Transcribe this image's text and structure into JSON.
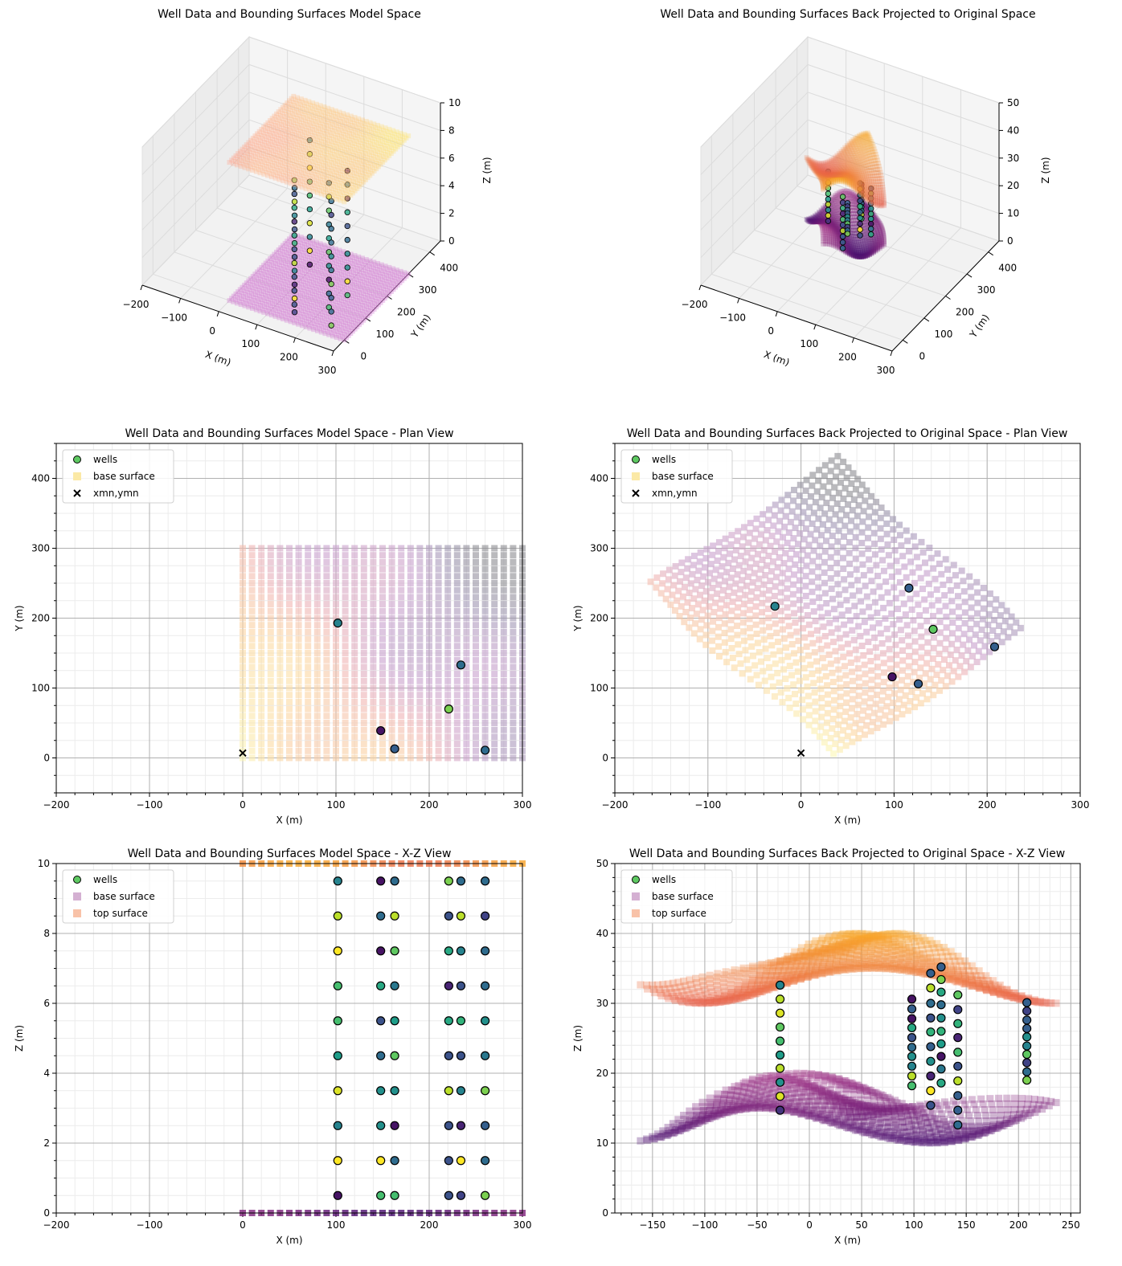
{
  "colors": {
    "wells_legend": "#5ec962",
    "base_legend_plan": "#fbe9a6",
    "base_legend_xz": "#d4b0d2",
    "top_legend_xz": "#f8c2a8",
    "marker_edge": "#000000",
    "xmn_marker": "#000000"
  },
  "surfaces": {
    "model_grid_x": [
      0,
      300
    ],
    "model_grid_y": [
      0,
      300
    ],
    "model_spacing": 10,
    "model_base_z": 0,
    "model_top_z": 10,
    "original_top_z_range": [
      30,
      40
    ],
    "original_base_z_range": [
      10,
      20
    ]
  },
  "chart_data": [
    {
      "type": "scatter",
      "view": "3d",
      "title": "Well Data and Bounding Surfaces Model Space",
      "xlabel": "X (m)",
      "ylabel": "Y (m)",
      "zlabel": "Z (m)",
      "xlim": [
        -200,
        300
      ],
      "ylim": [
        -50,
        450
      ],
      "zlim": [
        0,
        10
      ],
      "xticks": [
        "−200",
        "−100",
        "0",
        "100",
        "200",
        "300"
      ],
      "xtick_values": [
        -200,
        -100,
        0,
        100,
        200,
        300
      ],
      "yticks": [
        "0",
        "100",
        "200",
        "300",
        "400"
      ],
      "ytick_values": [
        0,
        100,
        200,
        300,
        400
      ],
      "zticks": [
        "0",
        "2",
        "4",
        "6",
        "8",
        "10"
      ],
      "ztick_values": [
        0,
        2,
        4,
        6,
        8,
        10
      ]
    },
    {
      "type": "scatter",
      "view": "3d",
      "title": "Well Data and Bounding Surfaces Back Projected to Original Space",
      "xlabel": "X (m)",
      "ylabel": "Y (m)",
      "zlabel": "Z (m)",
      "xlim": [
        -200,
        300
      ],
      "ylim": [
        -50,
        450
      ],
      "zlim": [
        0,
        50
      ],
      "xticks": [
        "−200",
        "−100",
        "0",
        "100",
        "200",
        "300"
      ],
      "xtick_values": [
        -200,
        -100,
        0,
        100,
        200,
        300
      ],
      "yticks": [
        "0",
        "100",
        "200",
        "300",
        "400"
      ],
      "ytick_values": [
        0,
        100,
        200,
        300,
        400
      ],
      "zticks": [
        "0",
        "10",
        "20",
        "30",
        "40",
        "50"
      ],
      "ztick_values": [
        0,
        10,
        20,
        30,
        40,
        50
      ]
    },
    {
      "type": "scatter",
      "view": "plan",
      "title": "Well Data and Bounding Surfaces Model Space - Plan View",
      "xlabel": "X (m)",
      "ylabel": "Y (m)",
      "xlim": [
        -200,
        300
      ],
      "ylim": [
        -50,
        450
      ],
      "grid": true,
      "legend_position": "upper-left",
      "xticks": [
        "−200",
        "−100",
        "0",
        "100",
        "200",
        "300"
      ],
      "xtick_values": [
        -200,
        -100,
        0,
        100,
        200,
        300
      ],
      "yticks": [
        "0",
        "100",
        "200",
        "300",
        "400"
      ],
      "ytick_values": [
        0,
        100,
        200,
        300,
        400
      ],
      "legend": [
        "wells",
        "base surface",
        "xmn,ymn"
      ],
      "wells": [
        {
          "x": 102,
          "y": 193,
          "v": 0.45
        },
        {
          "x": 234,
          "y": 133,
          "v": 0.35
        },
        {
          "x": 221,
          "y": 70,
          "v": 0.8
        },
        {
          "x": 148,
          "y": 39,
          "v": 0.05
        },
        {
          "x": 163,
          "y": 13,
          "v": 0.3
        },
        {
          "x": 260,
          "y": 11,
          "v": 0.35
        }
      ],
      "xmn_ymn": {
        "x": 0,
        "y": 7
      }
    },
    {
      "type": "scatter",
      "view": "plan",
      "title": "Well Data and Bounding Surfaces Back Projected to Original Space - Plan View",
      "xlabel": "X (m)",
      "ylabel": "Y (m)",
      "xlim": [
        -200,
        300
      ],
      "ylim": [
        -50,
        450
      ],
      "grid": true,
      "legend_position": "upper-left",
      "xticks": [
        "−200",
        "−100",
        "0",
        "100",
        "200",
        "300"
      ],
      "xtick_values": [
        -200,
        -100,
        0,
        100,
        200,
        300
      ],
      "yticks": [
        "0",
        "100",
        "200",
        "300",
        "400"
      ],
      "ytick_values": [
        0,
        100,
        200,
        300,
        400
      ],
      "legend": [
        "wells",
        "base surface",
        "xmn,ymn"
      ],
      "wells": [
        {
          "x": -28,
          "y": 217,
          "v": 0.45
        },
        {
          "x": 116,
          "y": 243,
          "v": 0.3
        },
        {
          "x": 142,
          "y": 184,
          "v": 0.75
        },
        {
          "x": 208,
          "y": 159,
          "v": 0.3
        },
        {
          "x": 98,
          "y": 116,
          "v": 0.05
        },
        {
          "x": 126,
          "y": 106,
          "v": 0.3
        }
      ],
      "xmn_ymn": {
        "x": 0,
        "y": 7
      }
    },
    {
      "type": "scatter",
      "view": "xz",
      "title": "Well Data and Bounding Surfaces Model Space - X-Z View",
      "xlabel": "X (m)",
      "ylabel": "Z (m)",
      "xlim": [
        -200,
        300
      ],
      "ylim": [
        0,
        10
      ],
      "grid": true,
      "legend_position": "upper-left",
      "xticks": [
        "−200",
        "−100",
        "0",
        "100",
        "200",
        "300"
      ],
      "xtick_values": [
        -200,
        -100,
        0,
        100,
        200,
        300
      ],
      "yticks": [
        "0",
        "2",
        "4",
        "6",
        "8",
        "10"
      ],
      "ytick_values": [
        0,
        2,
        4,
        6,
        8,
        10
      ],
      "legend": [
        "wells",
        "base surface",
        "top surface"
      ],
      "wells": [
        {
          "x": 102,
          "z": [
            9.5,
            8.5,
            7.5,
            6.5,
            5.5,
            4.5,
            3.5,
            2.5,
            1.5,
            0.5
          ],
          "v": [
            0.45,
            0.9,
            1.0,
            0.7,
            0.7,
            0.55,
            0.95,
            0.45,
            1.0,
            0.05
          ]
        },
        {
          "x": 148,
          "z": [
            9.5,
            8.5,
            7.5,
            6.5,
            5.5,
            4.5,
            3.5,
            2.5,
            1.5,
            0.5
          ],
          "v": [
            0.05,
            0.35,
            0.05,
            0.6,
            0.25,
            0.35,
            0.5,
            0.5,
            1.0,
            0.7
          ]
        },
        {
          "x": 163,
          "z": [
            9.5,
            8.5,
            7.5,
            6.5,
            5.5,
            4.5,
            3.5,
            2.5,
            1.5,
            0.5
          ],
          "v": [
            0.35,
            0.9,
            0.75,
            0.4,
            0.55,
            0.75,
            0.5,
            0.05,
            0.35,
            0.7
          ]
        },
        {
          "x": 221,
          "z": [
            9.5,
            8.5,
            7.5,
            6.5,
            5.5,
            4.5,
            3.5,
            2.5,
            1.5,
            0.5
          ],
          "v": [
            0.8,
            0.25,
            0.6,
            0.1,
            0.6,
            0.25,
            0.9,
            0.25,
            0.25,
            0.25
          ]
        },
        {
          "x": 234,
          "z": [
            9.5,
            8.5,
            7.5,
            6.5,
            5.5,
            4.5,
            3.5,
            2.5,
            1.5,
            0.5
          ],
          "v": [
            0.35,
            0.9,
            0.45,
            0.25,
            0.65,
            0.25,
            0.45,
            0.1,
            1.0,
            0.2
          ]
        },
        {
          "x": 260,
          "z": [
            9.5,
            8.5,
            7.5,
            6.5,
            5.5,
            4.5,
            3.5,
            2.5,
            1.5,
            0.5
          ],
          "v": [
            0.35,
            0.2,
            0.35,
            0.35,
            0.5,
            0.4,
            0.8,
            0.3,
            0.35,
            0.8
          ]
        }
      ]
    },
    {
      "type": "scatter",
      "view": "xz",
      "title": "Well Data and Bounding Surfaces Back Projected to Original Space  - X-Z View",
      "xlabel": "X (m)",
      "ylabel": "Z (m)",
      "xlim": [
        -186,
        259
      ],
      "ylim": [
        0,
        50
      ],
      "grid": true,
      "legend_position": "upper-left",
      "xticks": [
        "−150",
        "−100",
        "−50",
        "0",
        "50",
        "100",
        "150",
        "200",
        "250"
      ],
      "xtick_values": [
        -150,
        -100,
        -50,
        0,
        50,
        100,
        150,
        200,
        250
      ],
      "yticks": [
        "0",
        "10",
        "20",
        "30",
        "40",
        "50"
      ],
      "ytick_values": [
        0,
        10,
        20,
        30,
        40,
        50
      ],
      "legend": [
        "wells",
        "base surface",
        "top surface"
      ],
      "wells": [
        {
          "x": -28,
          "z": [
            32.6,
            30.6,
            28.6,
            26.6,
            24.6,
            22.6,
            20.7,
            18.7,
            16.7,
            14.7
          ],
          "v": [
            0.45,
            0.9,
            0.95,
            0.75,
            0.7,
            0.55,
            0.9,
            0.5,
            0.95,
            0.15
          ]
        },
        {
          "x": 98,
          "z": [
            30.6,
            29.2,
            27.8,
            26.5,
            25.1,
            23.7,
            22.4,
            21.0,
            19.6,
            18.2
          ],
          "v": [
            0.05,
            0.3,
            0.05,
            0.6,
            0.25,
            0.35,
            0.5,
            0.45,
            0.9,
            0.7
          ]
        },
        {
          "x": 116,
          "z": [
            34.3,
            32.2,
            30.0,
            27.9,
            25.9,
            23.8,
            21.7,
            19.6,
            17.5,
            15.4
          ],
          "v": [
            0.3,
            0.9,
            0.35,
            0.25,
            0.65,
            0.3,
            0.5,
            0.1,
            1.0,
            0.25
          ]
        },
        {
          "x": 126,
          "z": [
            35.2,
            33.4,
            31.6,
            29.8,
            27.9,
            26.0,
            24.2,
            22.4,
            20.6,
            18.6
          ],
          "v": [
            0.3,
            0.8,
            0.6,
            0.35,
            0.5,
            0.65,
            0.55,
            0.05,
            0.4,
            0.6
          ]
        },
        {
          "x": 142,
          "z": [
            31.2,
            29.1,
            27.1,
            25.1,
            23.0,
            21.0,
            18.9,
            16.8,
            14.7,
            12.6
          ],
          "v": [
            0.75,
            0.2,
            0.65,
            0.1,
            0.7,
            0.25,
            0.9,
            0.3,
            0.3,
            0.35
          ]
        },
        {
          "x": 208,
          "z": [
            30.1,
            28.9,
            27.6,
            26.4,
            25.2,
            23.9,
            22.7,
            21.5,
            20.2,
            19.0
          ],
          "v": [
            0.3,
            0.2,
            0.3,
            0.3,
            0.5,
            0.45,
            0.75,
            0.2,
            0.35,
            0.8
          ]
        }
      ]
    }
  ]
}
